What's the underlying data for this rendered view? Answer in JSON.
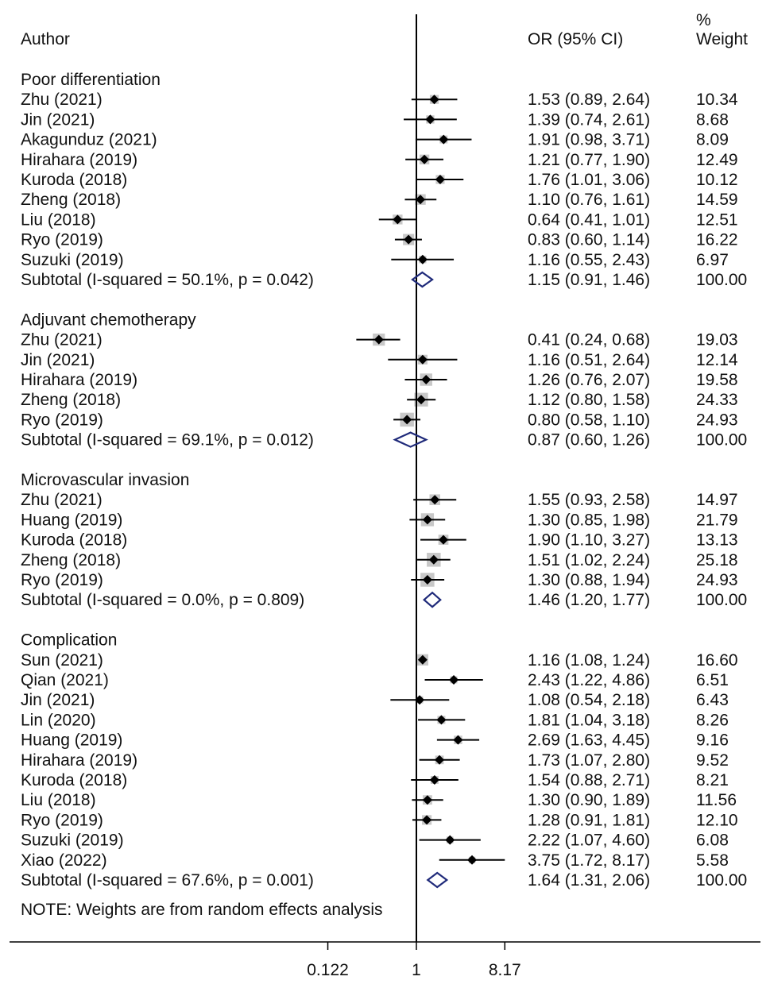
{
  "chart_data": {
    "type": "forest",
    "header": {
      "author": "Author",
      "or_ci": "OR (95% CI)",
      "weight_line1": "%",
      "weight_line2": "Weight"
    },
    "x_axis": {
      "scale": "log",
      "ticks": [
        {
          "value": 0.122,
          "label": "0.122"
        },
        {
          "value": 1,
          "label": "1"
        },
        {
          "value": 8.17,
          "label": "8.17"
        }
      ],
      "null_line": 1
    },
    "groups": [
      {
        "name": "Poor differentiation",
        "studies": [
          {
            "label": "Zhu (2021)",
            "or": 1.53,
            "lo": 0.89,
            "hi": 2.64,
            "ci_text": "1.53 (0.89, 2.64)",
            "weight": "10.34"
          },
          {
            "label": "Jin (2021)",
            "or": 1.39,
            "lo": 0.74,
            "hi": 2.61,
            "ci_text": "1.39 (0.74, 2.61)",
            "weight": "8.68"
          },
          {
            "label": "Akagunduz (2021)",
            "or": 1.91,
            "lo": 0.98,
            "hi": 3.71,
            "ci_text": "1.91 (0.98, 3.71)",
            "weight": "8.09"
          },
          {
            "label": "Hirahara (2019)",
            "or": 1.21,
            "lo": 0.77,
            "hi": 1.9,
            "ci_text": "1.21 (0.77, 1.90)",
            "weight": "12.49"
          },
          {
            "label": "Kuroda (2018)",
            "or": 1.76,
            "lo": 1.01,
            "hi": 3.06,
            "ci_text": "1.76 (1.01, 3.06)",
            "weight": "10.12"
          },
          {
            "label": "Zheng (2018)",
            "or": 1.1,
            "lo": 0.76,
            "hi": 1.61,
            "ci_text": "1.10 (0.76, 1.61)",
            "weight": "14.59"
          },
          {
            "label": "Liu (2018)",
            "or": 0.64,
            "lo": 0.41,
            "hi": 1.01,
            "ci_text": "0.64 (0.41, 1.01)",
            "weight": "12.51"
          },
          {
            "label": "Ryo (2019)",
            "or": 0.83,
            "lo": 0.6,
            "hi": 1.14,
            "ci_text": "0.83 (0.60, 1.14)",
            "weight": "16.22"
          },
          {
            "label": "Suzuki (2019)",
            "or": 1.16,
            "lo": 0.55,
            "hi": 2.43,
            "ci_text": "1.16 (0.55, 2.43)",
            "weight": "6.97"
          }
        ],
        "subtotal": {
          "label": "Subtotal  (I-squared = 50.1%, p = 0.042)",
          "or": 1.15,
          "lo": 0.91,
          "hi": 1.46,
          "ci_text": "1.15 (0.91, 1.46)",
          "weight": "100.00"
        }
      },
      {
        "name": "Adjuvant chemotherapy",
        "studies": [
          {
            "label": "Zhu (2021)",
            "or": 0.41,
            "lo": 0.24,
            "hi": 0.68,
            "ci_text": "0.41 (0.24, 0.68)",
            "weight": "19.03"
          },
          {
            "label": "Jin (2021)",
            "or": 1.16,
            "lo": 0.51,
            "hi": 2.64,
            "ci_text": "1.16 (0.51, 2.64)",
            "weight": "12.14"
          },
          {
            "label": "Hirahara (2019)",
            "or": 1.26,
            "lo": 0.76,
            "hi": 2.07,
            "ci_text": "1.26 (0.76, 2.07)",
            "weight": "19.58"
          },
          {
            "label": "Zheng (2018)",
            "or": 1.12,
            "lo": 0.8,
            "hi": 1.58,
            "ci_text": "1.12 (0.80, 1.58)",
            "weight": "24.33"
          },
          {
            "label": "Ryo (2019)",
            "or": 0.8,
            "lo": 0.58,
            "hi": 1.1,
            "ci_text": "0.80 (0.58, 1.10)",
            "weight": "24.93"
          }
        ],
        "subtotal": {
          "label": "Subtotal  (I-squared = 69.1%, p = 0.012)",
          "or": 0.87,
          "lo": 0.6,
          "hi": 1.26,
          "ci_text": "0.87 (0.60, 1.26)",
          "weight": "100.00"
        }
      },
      {
        "name": "Microvascular invasion",
        "studies": [
          {
            "label": "Zhu (2021)",
            "or": 1.55,
            "lo": 0.93,
            "hi": 2.58,
            "ci_text": "1.55 (0.93, 2.58)",
            "weight": "14.97"
          },
          {
            "label": "Huang (2019)",
            "or": 1.3,
            "lo": 0.85,
            "hi": 1.98,
            "ci_text": "1.30 (0.85, 1.98)",
            "weight": "21.79"
          },
          {
            "label": "Kuroda (2018)",
            "or": 1.9,
            "lo": 1.1,
            "hi": 3.27,
            "ci_text": "1.90 (1.10, 3.27)",
            "weight": "13.13"
          },
          {
            "label": "Zheng (2018)",
            "or": 1.51,
            "lo": 1.02,
            "hi": 2.24,
            "ci_text": "1.51 (1.02, 2.24)",
            "weight": "25.18"
          },
          {
            "label": "Ryo (2019)",
            "or": 1.3,
            "lo": 0.88,
            "hi": 1.94,
            "ci_text": "1.30 (0.88, 1.94)",
            "weight": "24.93"
          }
        ],
        "subtotal": {
          "label": "Subtotal  (I-squared = 0.0%, p = 0.809)",
          "or": 1.46,
          "lo": 1.2,
          "hi": 1.77,
          "ci_text": "1.46 (1.20, 1.77)",
          "weight": "100.00"
        }
      },
      {
        "name": "Complication",
        "studies": [
          {
            "label": "Sun (2021)",
            "or": 1.16,
            "lo": 1.08,
            "hi": 1.24,
            "ci_text": "1.16 (1.08, 1.24)",
            "weight": "16.60"
          },
          {
            "label": "Qian (2021)",
            "or": 2.43,
            "lo": 1.22,
            "hi": 4.86,
            "ci_text": "2.43 (1.22, 4.86)",
            "weight": "6.51"
          },
          {
            "label": "Jin (2021)",
            "or": 1.08,
            "lo": 0.54,
            "hi": 2.18,
            "ci_text": "1.08 (0.54, 2.18)",
            "weight": "6.43"
          },
          {
            "label": "Lin (2020)",
            "or": 1.81,
            "lo": 1.04,
            "hi": 3.18,
            "ci_text": "1.81 (1.04, 3.18)",
            "weight": "8.26"
          },
          {
            "label": "Huang (2019)",
            "or": 2.69,
            "lo": 1.63,
            "hi": 4.45,
            "ci_text": "2.69 (1.63, 4.45)",
            "weight": "9.16"
          },
          {
            "label": "Hirahara (2019)",
            "or": 1.73,
            "lo": 1.07,
            "hi": 2.8,
            "ci_text": "1.73 (1.07, 2.80)",
            "weight": "9.52"
          },
          {
            "label": "Kuroda (2018)",
            "or": 1.54,
            "lo": 0.88,
            "hi": 2.71,
            "ci_text": "1.54 (0.88, 2.71)",
            "weight": "8.21"
          },
          {
            "label": "Liu (2018)",
            "or": 1.3,
            "lo": 0.9,
            "hi": 1.89,
            "ci_text": "1.30 (0.90, 1.89)",
            "weight": "11.56"
          },
          {
            "label": "Ryo (2019)",
            "or": 1.28,
            "lo": 0.91,
            "hi": 1.81,
            "ci_text": "1.28 (0.91, 1.81)",
            "weight": "12.10"
          },
          {
            "label": "Suzuki (2019)",
            "or": 2.22,
            "lo": 1.07,
            "hi": 4.6,
            "ci_text": "2.22 (1.07, 4.60)",
            "weight": "6.08"
          },
          {
            "label": "Xiao (2022)",
            "or": 3.75,
            "lo": 1.72,
            "hi": 8.17,
            "ci_text": "3.75 (1.72, 8.17)",
            "weight": "5.58"
          }
        ],
        "subtotal": {
          "label": "Subtotal  (I-squared = 67.6%, p = 0.001)",
          "or": 1.64,
          "lo": 1.31,
          "hi": 2.06,
          "ci_text": "1.64 (1.31, 2.06)",
          "weight": "100.00"
        }
      }
    ],
    "note": "NOTE: Weights are from random effects analysis",
    "colors": {
      "text": "#111111",
      "weight_box": "#c8c8c8",
      "point": "#000000",
      "diamond": "#1f2a7a"
    }
  }
}
